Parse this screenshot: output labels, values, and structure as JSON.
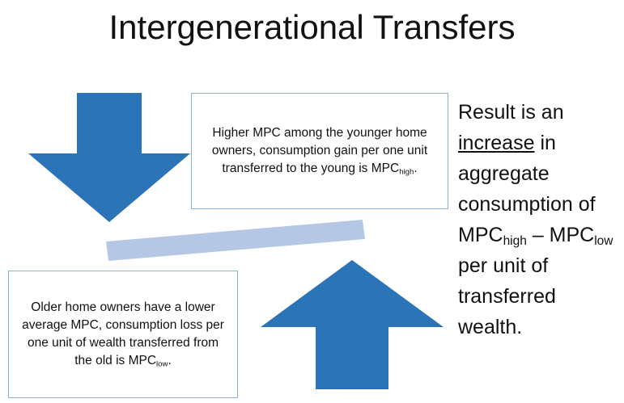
{
  "title": "Intergenerational Transfers",
  "young_box": {
    "text": "Higher MPC among the younger home owners, consumption gain per one unit transferred to the young is MPC",
    "subscript": "high",
    "end": "."
  },
  "old_box": {
    "text": "Older home owners have a lower average MPC, consumption loss per one unit of wealth transferred from the old is MPC",
    "subscript": "low",
    "end": "."
  },
  "result": {
    "lead": "Result is an ",
    "emphasis": "increase",
    "middle": " in aggregate consumption of MPC",
    "sub_high": "high",
    "dash": " – MPC",
    "sub_low": "low",
    "tail": " per unit of transferred wealth."
  }
}
